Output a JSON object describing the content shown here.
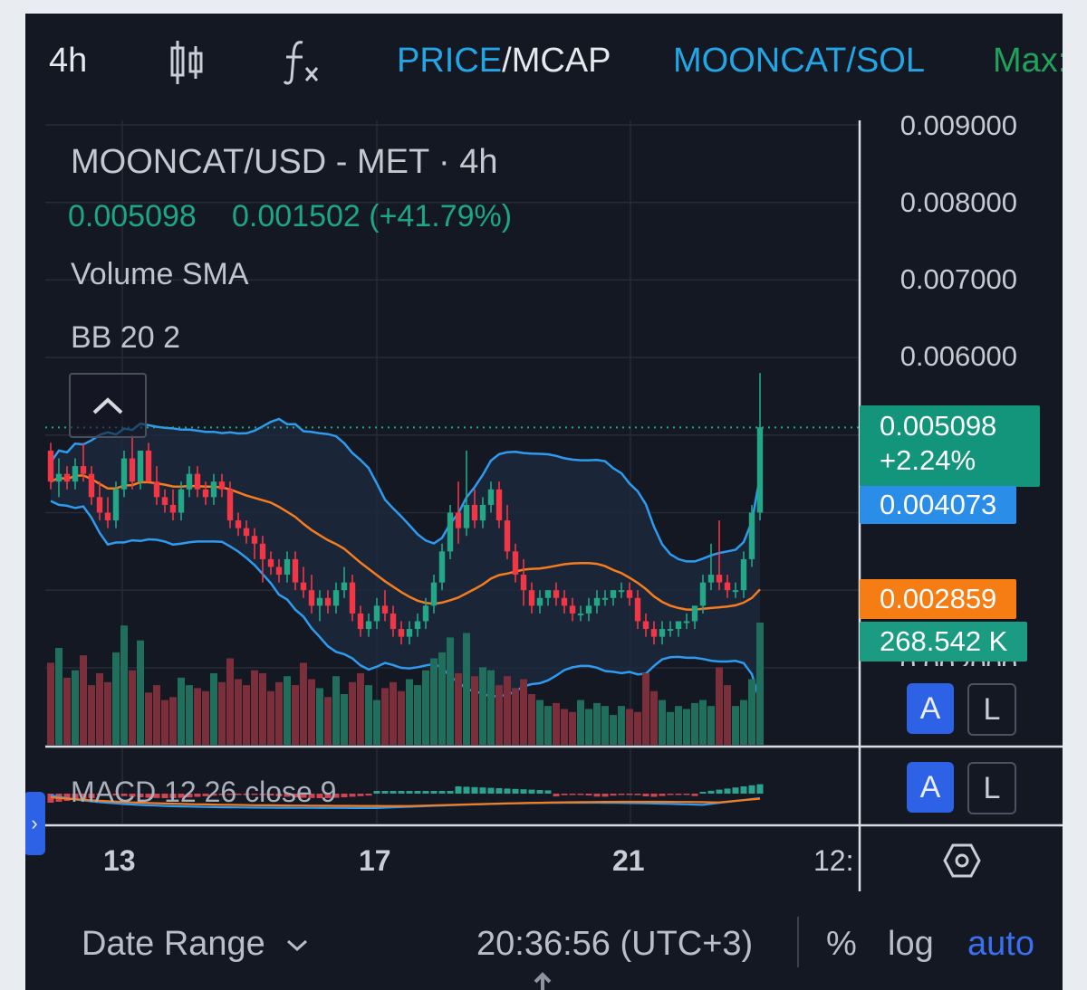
{
  "toolbar": {
    "interval": "4h",
    "candles_icon": "candlestick-icon",
    "indicators_icon": "fx-icon",
    "price": "PRICE",
    "slash": "/",
    "mcap": "MCAP",
    "pair": "MOONCAT/SOL",
    "max_label": "Max:"
  },
  "legend": {
    "title": "MOONCAT/USD - MET · 4h",
    "price": "0.005098",
    "change": "0.001502 (+41.79%)",
    "volume_sma": "Volume SMA",
    "bb": "BB 20 2",
    "macd": "MACD 12 26 close 9"
  },
  "price_axis": {
    "labels": [
      "0.009000",
      "0.008000",
      "0.007000",
      "0.006000",
      "0.002000"
    ]
  },
  "badges": {
    "last_price": "0.005098",
    "last_change": "+2.24%",
    "bb_upper": "0.004073",
    "bb_basis": "0.002859",
    "volume": "268.542 K"
  },
  "scale_buttons": {
    "auto_a": "A",
    "log_l": "L",
    "auto_a2": "A",
    "log_l2": "L"
  },
  "time_axis": {
    "labels": [
      "13",
      "17",
      "21",
      "12:"
    ],
    "settings_icon": "hexagon-settings-icon"
  },
  "bottom_bar": {
    "date_range": "Date Range",
    "time": "20:36:56 (UTC+3)",
    "percent": "%",
    "log": "log",
    "auto": "auto"
  },
  "colors": {
    "up": "#23a786",
    "down": "#f23645",
    "bb_band": "#2e9bef",
    "bb_basis": "#f57d20",
    "background": "#141823",
    "accent_blue": "#22a6e6"
  },
  "chart_data": {
    "type": "candlestick",
    "interval": "4h",
    "ylim": [
      0.002,
      0.009
    ],
    "x_ticks": [
      "13",
      "17",
      "21",
      "12:"
    ],
    "last_price": 0.005098,
    "candles": [
      [
        0.0048,
        0.0049,
        0.0043,
        0.0044
      ],
      [
        0.0044,
        0.0047,
        0.0042,
        0.0045
      ],
      [
        0.0045,
        0.0046,
        0.0043,
        0.0044
      ],
      [
        0.0044,
        0.0047,
        0.0043,
        0.0046
      ],
      [
        0.0046,
        0.0049,
        0.0044,
        0.0045
      ],
      [
        0.0045,
        0.0046,
        0.0041,
        0.0042
      ],
      [
        0.0042,
        0.0044,
        0.0039,
        0.004
      ],
      [
        0.004,
        0.0042,
        0.0038,
        0.0039
      ],
      [
        0.0039,
        0.0044,
        0.0038,
        0.0043
      ],
      [
        0.0043,
        0.0048,
        0.0042,
        0.0047
      ],
      [
        0.0047,
        0.005,
        0.0043,
        0.0044
      ],
      [
        0.0044,
        0.0048,
        0.0043,
        0.0048
      ],
      [
        0.0048,
        0.0049,
        0.0044,
        0.0044
      ],
      [
        0.0044,
        0.0046,
        0.0041,
        0.0042
      ],
      [
        0.0042,
        0.0043,
        0.004,
        0.0041
      ],
      [
        0.0041,
        0.0043,
        0.0039,
        0.004
      ],
      [
        0.004,
        0.0044,
        0.0039,
        0.0043
      ],
      [
        0.0043,
        0.0046,
        0.0042,
        0.0045
      ],
      [
        0.0045,
        0.0046,
        0.0042,
        0.0043
      ],
      [
        0.0043,
        0.0044,
        0.0041,
        0.0042
      ],
      [
        0.0042,
        0.0045,
        0.0041,
        0.0044
      ],
      [
        0.0044,
        0.0045,
        0.0042,
        0.0043
      ],
      [
        0.0043,
        0.0044,
        0.0038,
        0.0039
      ],
      [
        0.0039,
        0.004,
        0.0037,
        0.0038
      ],
      [
        0.0038,
        0.0039,
        0.0036,
        0.0037
      ],
      [
        0.0037,
        0.0038,
        0.0034,
        0.0036
      ],
      [
        0.0036,
        0.0037,
        0.0031,
        0.0034
      ],
      [
        0.0034,
        0.0035,
        0.0032,
        0.0033
      ],
      [
        0.0033,
        0.0034,
        0.0031,
        0.0032
      ],
      [
        0.0032,
        0.0035,
        0.0031,
        0.0034
      ],
      [
        0.0034,
        0.0035,
        0.003,
        0.0031
      ],
      [
        0.0031,
        0.0033,
        0.0029,
        0.003
      ],
      [
        0.003,
        0.0032,
        0.0027,
        0.0028
      ],
      [
        0.0028,
        0.003,
        0.0026,
        0.0029
      ],
      [
        0.0029,
        0.003,
        0.0027,
        0.0028
      ],
      [
        0.0028,
        0.0031,
        0.0027,
        0.003
      ],
      [
        0.003,
        0.0033,
        0.0029,
        0.0031
      ],
      [
        0.0031,
        0.0032,
        0.0026,
        0.0027
      ],
      [
        0.0027,
        0.0028,
        0.0024,
        0.0025
      ],
      [
        0.0025,
        0.0027,
        0.0024,
        0.0026
      ],
      [
        0.0026,
        0.0029,
        0.0025,
        0.0028
      ],
      [
        0.0028,
        0.003,
        0.0026,
        0.0027
      ],
      [
        0.0027,
        0.0028,
        0.0024,
        0.0025
      ],
      [
        0.0025,
        0.0026,
        0.0023,
        0.0024
      ],
      [
        0.0024,
        0.0026,
        0.0023,
        0.0025
      ],
      [
        0.0025,
        0.0027,
        0.0024,
        0.0026
      ],
      [
        0.0026,
        0.0029,
        0.0025,
        0.0028
      ],
      [
        0.0028,
        0.0032,
        0.0027,
        0.0031
      ],
      [
        0.0031,
        0.0036,
        0.003,
        0.0035
      ],
      [
        0.0035,
        0.0041,
        0.0034,
        0.004
      ],
      [
        0.004,
        0.0044,
        0.0036,
        0.0038
      ],
      [
        0.0038,
        0.0048,
        0.0037,
        0.0041
      ],
      [
        0.0041,
        0.0043,
        0.0038,
        0.0039
      ],
      [
        0.0039,
        0.0042,
        0.0038,
        0.0041
      ],
      [
        0.0041,
        0.0044,
        0.004,
        0.0043
      ],
      [
        0.0043,
        0.0044,
        0.0038,
        0.0039
      ],
      [
        0.0039,
        0.0041,
        0.0034,
        0.0035
      ],
      [
        0.0035,
        0.0036,
        0.0031,
        0.0032
      ],
      [
        0.0032,
        0.0034,
        0.0028,
        0.003
      ],
      [
        0.003,
        0.0031,
        0.0027,
        0.0028
      ],
      [
        0.0028,
        0.003,
        0.0027,
        0.0029
      ],
      [
        0.0029,
        0.003,
        0.0028,
        0.003
      ],
      [
        0.003,
        0.0031,
        0.0028,
        0.0029
      ],
      [
        0.0029,
        0.003,
        0.0027,
        0.0028
      ],
      [
        0.0028,
        0.0029,
        0.0026,
        0.0027
      ],
      [
        0.0027,
        0.0028,
        0.0026,
        0.0027
      ],
      [
        0.0027,
        0.0029,
        0.0026,
        0.0028
      ],
      [
        0.0028,
        0.003,
        0.0027,
        0.0029
      ],
      [
        0.0029,
        0.003,
        0.0028,
        0.0029
      ],
      [
        0.0029,
        0.003,
        0.0028,
        0.003
      ],
      [
        0.003,
        0.0031,
        0.0029,
        0.003
      ],
      [
        0.003,
        0.0031,
        0.0028,
        0.0029
      ],
      [
        0.0029,
        0.003,
        0.0025,
        0.0026
      ],
      [
        0.0026,
        0.0027,
        0.0024,
        0.0025
      ],
      [
        0.0025,
        0.0026,
        0.0023,
        0.0024
      ],
      [
        0.0024,
        0.0026,
        0.0023,
        0.0025
      ],
      [
        0.0025,
        0.0026,
        0.0024,
        0.0025
      ],
      [
        0.0025,
        0.0026,
        0.0024,
        0.0026
      ],
      [
        0.0026,
        0.0027,
        0.0025,
        0.0026
      ],
      [
        0.0026,
        0.0028,
        0.0025,
        0.0028
      ],
      [
        0.0028,
        0.0032,
        0.0027,
        0.0031
      ],
      [
        0.0031,
        0.0036,
        0.003,
        0.0032
      ],
      [
        0.0032,
        0.0039,
        0.003,
        0.0031
      ],
      [
        0.0031,
        0.0032,
        0.0029,
        0.003
      ],
      [
        0.003,
        0.0031,
        0.0029,
        0.003
      ],
      [
        0.003,
        0.0035,
        0.0029,
        0.0034
      ],
      [
        0.0034,
        0.0041,
        0.0033,
        0.004
      ],
      [
        0.004,
        0.0058,
        0.0039,
        0.0051
      ]
    ],
    "volume": [
      55,
      65,
      45,
      50,
      60,
      40,
      48,
      42,
      62,
      80,
      50,
      70,
      35,
      40,
      30,
      32,
      45,
      40,
      38,
      36,
      48,
      42,
      58,
      44,
      40,
      50,
      48,
      36,
      42,
      46,
      40,
      55,
      44,
      38,
      32,
      46,
      34,
      42,
      48,
      40,
      30,
      38,
      42,
      36,
      44,
      40,
      50,
      58,
      62,
      72,
      48,
      75,
      46,
      52,
      50,
      40,
      46,
      38,
      44,
      34,
      30,
      26,
      28,
      24,
      22,
      30,
      24,
      28,
      26,
      20,
      26,
      24,
      22,
      48,
      36,
      30,
      22,
      26,
      24,
      28,
      30,
      26,
      52,
      40,
      26,
      30,
      44,
      82
    ]
  }
}
